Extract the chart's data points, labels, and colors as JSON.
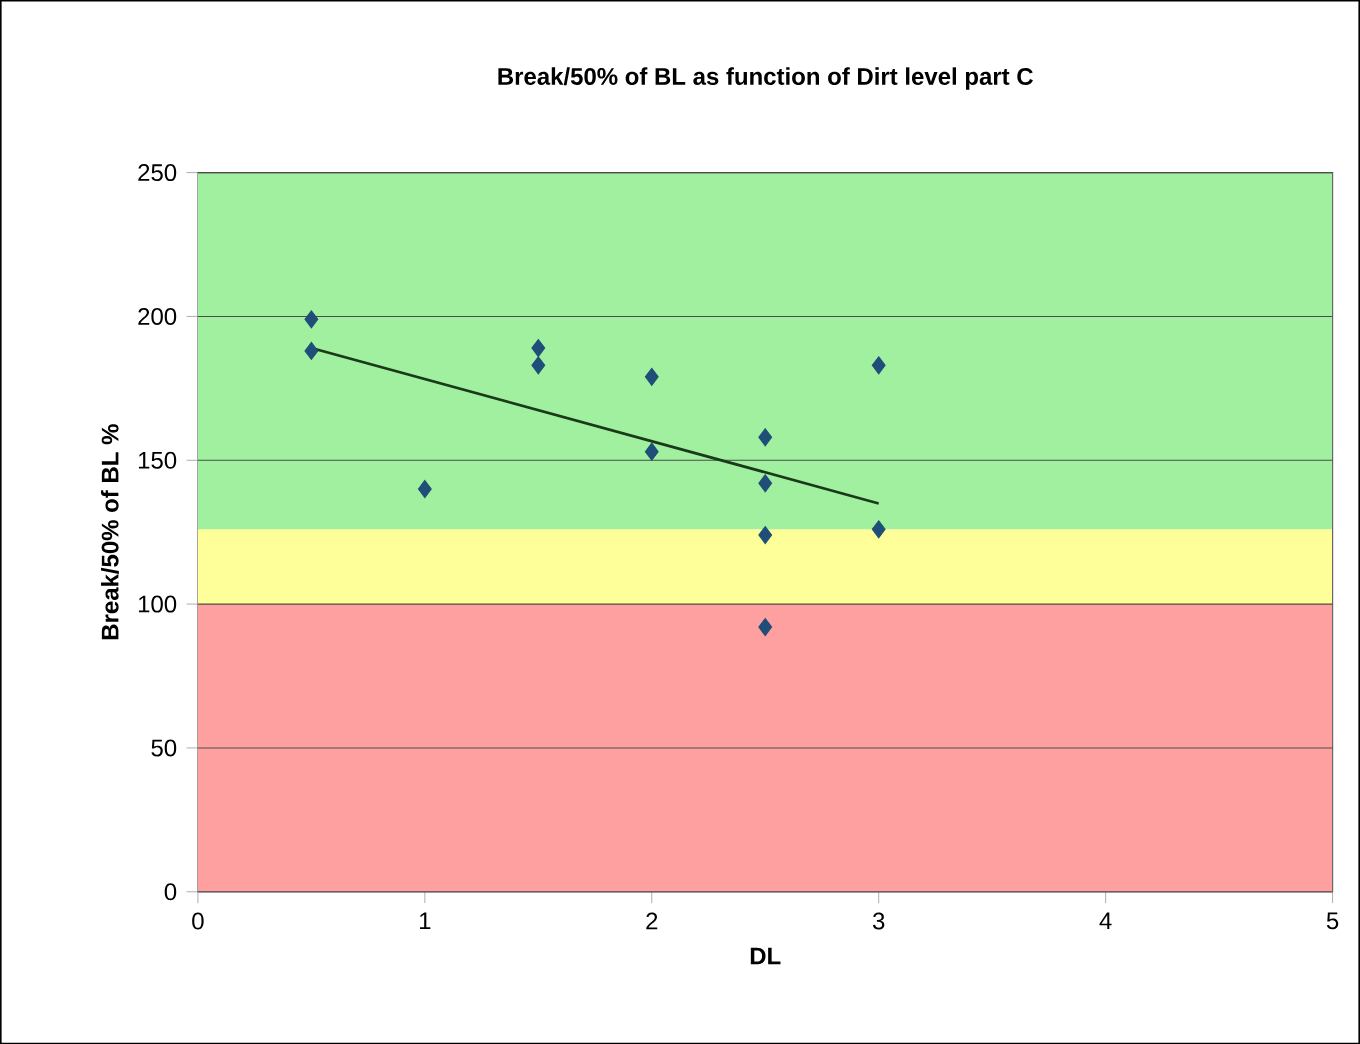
{
  "chart_data": {
    "type": "scatter",
    "title": "Break/50% of BL as function of Dirt level part C",
    "xlabel": "DL",
    "ylabel": "Break/50% of BL %",
    "xlim": [
      0,
      5
    ],
    "ylim": [
      0,
      250
    ],
    "xticks": [
      0,
      1,
      2,
      3,
      4,
      5
    ],
    "yticks": [
      0,
      50,
      100,
      150,
      200,
      250
    ],
    "grid": "y",
    "series": [
      {
        "marker": "diamond",
        "color": "#1f4e79",
        "x": [
          0.5,
          0.5,
          1,
          1.5,
          1.5,
          2,
          2,
          2.5,
          2.5,
          2.5,
          2.5,
          3,
          3
        ],
        "values": [
          199,
          188,
          140,
          189,
          183,
          179,
          153,
          158,
          142,
          124,
          92,
          183,
          126
        ]
      },
      {
        "type": "line",
        "marker": "none",
        "color": "#1a3a1a",
        "x": [
          0.5,
          3
        ],
        "values": [
          189,
          135
        ]
      }
    ],
    "bands": [
      {
        "axis": "y",
        "from": 0,
        "to": 100,
        "color": "#ffa0a0"
      },
      {
        "axis": "y",
        "from": 100,
        "to": 126,
        "color": "#ffff99"
      },
      {
        "axis": "y",
        "from": 126,
        "to": 250,
        "color": "#a0f0a0"
      }
    ]
  }
}
